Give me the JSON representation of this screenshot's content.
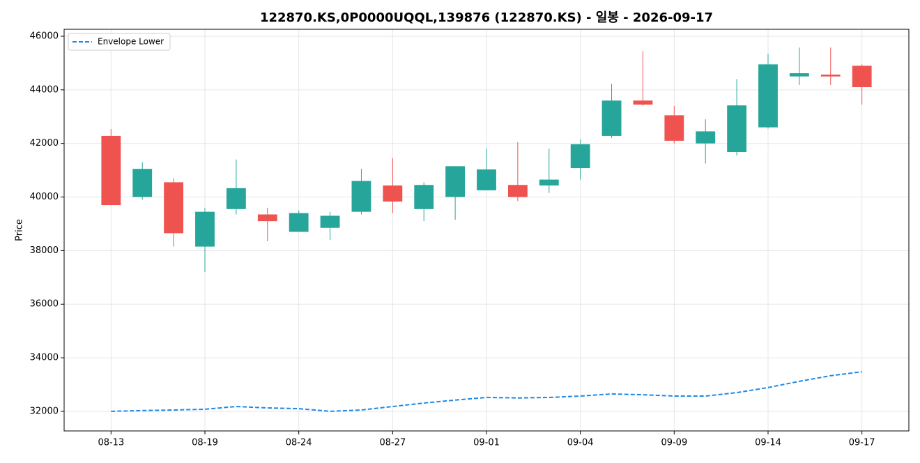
{
  "chart_data": {
    "type": "candlestick",
    "title": "122870.KS,0P0000UQQL,139876 (122870.KS) - 일봉 - 2026-09-17",
    "y_label": "Price",
    "categories": [
      "08-13",
      null,
      null,
      "08-19",
      null,
      null,
      "08-24",
      null,
      null,
      "08-27",
      null,
      null,
      "09-01",
      null,
      null,
      "09-04",
      null,
      null,
      "09-09",
      null,
      null,
      "09-14",
      null,
      null,
      "09-17"
    ],
    "open": [
      42280,
      40000,
      40550,
      38150,
      39550,
      39350,
      38700,
      38850,
      39450,
      40430,
      39550,
      40000,
      40250,
      40450,
      40430,
      41080,
      42280,
      43600,
      43050,
      42000,
      41680,
      42600,
      44500,
      44570,
      44900
    ],
    "high": [
      42540,
      41300,
      40700,
      39600,
      41400,
      39600,
      39500,
      39450,
      41050,
      41450,
      40550,
      41150,
      41800,
      42050,
      41800,
      42150,
      44230,
      45450,
      43400,
      42900,
      44400,
      45350,
      45580,
      45580,
      44950
    ],
    "low": [
      39700,
      39900,
      38150,
      37200,
      39350,
      38350,
      38700,
      38400,
      39350,
      39400,
      39100,
      39150,
      40250,
      39850,
      40150,
      40650,
      42200,
      43400,
      42000,
      41250,
      41550,
      42550,
      44180,
      44180,
      43450
    ],
    "close": [
      39700,
      41050,
      38650,
      39450,
      40330,
      39100,
      39400,
      39300,
      40600,
      39830,
      40450,
      41150,
      41030,
      40000,
      40650,
      41970,
      43600,
      43450,
      42100,
      42450,
      43420,
      44950,
      44620,
      44500,
      44100
    ],
    "up_color": "#26a69a",
    "down_color": "#ef5350",
    "series": [
      {
        "name": "Envelope Lower",
        "color": "#1e88e5",
        "style": "dashed",
        "values": [
          32000,
          32030,
          32050,
          32080,
          32180,
          32130,
          32100,
          32000,
          32050,
          32180,
          32310,
          32420,
          32520,
          32500,
          32520,
          32570,
          32650,
          32620,
          32570,
          32570,
          32700,
          32890,
          33120,
          33330,
          33480
        ]
      }
    ],
    "ylim": [
      31270,
      46260
    ],
    "yticks": [
      32000,
      34000,
      36000,
      38000,
      40000,
      42000,
      44000,
      46000
    ],
    "grid": true,
    "legend": "upper left"
  }
}
